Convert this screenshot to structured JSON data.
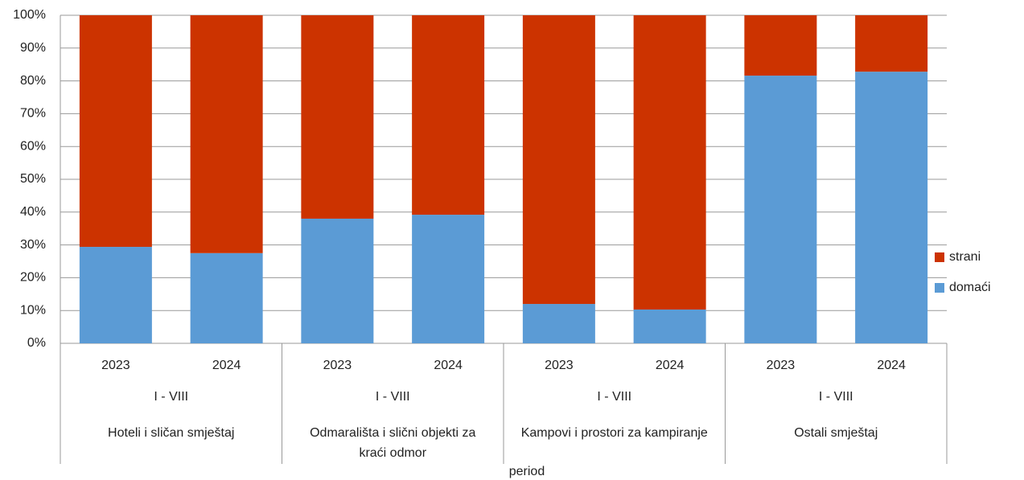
{
  "chart_data": {
    "type": "stacked_bar",
    "x_label": "period",
    "categories": [
      "2023",
      "2024",
      "2023",
      "2024",
      "2023",
      "2024",
      "2023",
      "2024"
    ],
    "groups": [
      {
        "name": "Hoteli i sličan smještaj",
        "period": "I - VIII"
      },
      {
        "name": "Odmarališta i slični objekti za kraći odmor",
        "period": "I - VIII"
      },
      {
        "name": "Kampovi i prostori za kampiranje",
        "period": "I - VIII"
      },
      {
        "name": "Ostali smještaj",
        "period": "I - VIII"
      }
    ],
    "series": [
      {
        "name": "domaći",
        "color": "#5b9bd5",
        "values": [
          29.4,
          27.5,
          38.0,
          39.2,
          12.0,
          10.3,
          81.6,
          82.8
        ]
      },
      {
        "name": "strani",
        "color": "#cc3300",
        "values": [
          70.6,
          72.5,
          62.0,
          60.8,
          88.0,
          89.7,
          18.4,
          17.2
        ]
      }
    ],
    "ylim": [
      0,
      100
    ],
    "yticks": [
      {
        "value": 0,
        "label": "0%"
      },
      {
        "value": 10,
        "label": "10%"
      },
      {
        "value": 20,
        "label": "20%"
      },
      {
        "value": 30,
        "label": "30%"
      },
      {
        "value": 40,
        "label": "40%"
      },
      {
        "value": 50,
        "label": "50%"
      },
      {
        "value": 60,
        "label": "60%"
      },
      {
        "value": 70,
        "label": "70%"
      },
      {
        "value": 80,
        "label": "80%"
      },
      {
        "value": 90,
        "label": "90%"
      },
      {
        "value": 100,
        "label": "100%"
      }
    ],
    "grid": true,
    "legend": "right"
  }
}
